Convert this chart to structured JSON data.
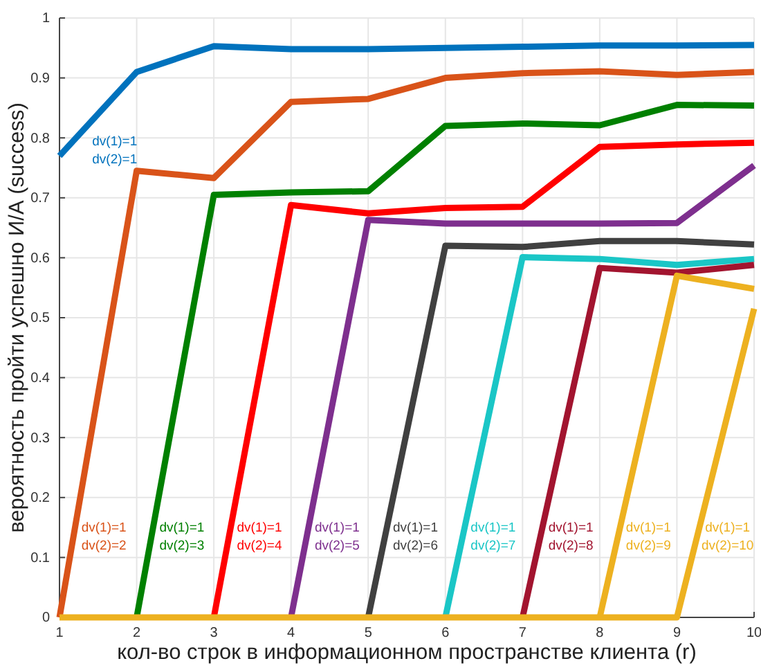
{
  "chart_data": {
    "type": "line",
    "xlabel": "кол-во строк в информационном пространстве клиента (r)",
    "ylabel": "вероятность пройти успешно И/А (success)",
    "x": [
      1,
      2,
      3,
      4,
      5,
      6,
      7,
      8,
      9,
      10
    ],
    "xlim": [
      1,
      10
    ],
    "xticks": [
      1,
      2,
      3,
      4,
      5,
      6,
      7,
      8,
      9,
      10
    ],
    "ylim": [
      0,
      1
    ],
    "yticks": [
      0,
      0.1,
      0.2,
      0.3,
      0.4,
      0.5,
      0.6,
      0.7,
      0.8,
      0.9,
      1
    ],
    "grid": true,
    "legend": false,
    "marker": "none",
    "line_style": "solid",
    "series": [
      {
        "name": "dv(1)=1 dv(2)=1",
        "color": "#0072bd",
        "values": [
          0.77,
          0.91,
          0.953,
          0.948,
          0.948,
          0.95,
          0.952,
          0.954,
          0.954,
          0.955
        ]
      },
      {
        "name": "dv(1)=1 dv(2)=2",
        "color": "#d95319",
        "values": [
          0,
          0.745,
          0.733,
          0.86,
          0.865,
          0.9,
          0.908,
          0.911,
          0.905,
          0.91
        ]
      },
      {
        "name": "dv(1)=1 dv(2)=3",
        "color": "#008000",
        "values": [
          null,
          0,
          0.705,
          0.709,
          0.711,
          0.82,
          0.824,
          0.821,
          0.855,
          0.854
        ]
      },
      {
        "name": "dv(1)=1 dv(2)=4",
        "color": "#ff0000",
        "values": [
          null,
          null,
          0,
          0.688,
          0.674,
          0.683,
          0.685,
          0.785,
          0.789,
          0.792
        ]
      },
      {
        "name": "dv(1)=1 dv(2)=5",
        "color": "#7e2f8e",
        "values": [
          null,
          null,
          null,
          0,
          0.663,
          0.657,
          0.657,
          0.657,
          0.658,
          0.754
        ]
      },
      {
        "name": "dv(1)=1 dv(2)=6",
        "color": "#404040",
        "values": [
          null,
          null,
          null,
          null,
          0,
          0.62,
          0.618,
          0.628,
          0.628,
          0.622
        ]
      },
      {
        "name": "dv(1)=1 dv(2)=7",
        "color": "#1ac6c6",
        "values": [
          null,
          null,
          null,
          null,
          null,
          0,
          0.601,
          0.598,
          0.588,
          0.598
        ]
      },
      {
        "name": "dv(1)=1 dv(2)=8",
        "color": "#a2142f",
        "values": [
          null,
          null,
          null,
          null,
          null,
          null,
          0,
          0.583,
          0.575,
          0.588
        ]
      },
      {
        "name": "dv(1)=1 dv(2)=9",
        "color": "#edb120",
        "values": [
          null,
          null,
          null,
          null,
          null,
          null,
          null,
          0,
          0.57,
          0.548
        ]
      },
      {
        "name": "dv(1)=1 dv(2)=10",
        "color": "#edb120",
        "values": [
          0,
          0,
          0,
          0,
          0,
          0,
          0,
          0,
          0,
          0.515
        ]
      }
    ]
  }
}
